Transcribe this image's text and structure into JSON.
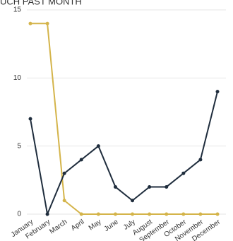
{
  "chart_data": {
    "type": "line",
    "title": "UCH PAST MONTH",
    "categories": [
      "January",
      "February",
      "March",
      "April",
      "May",
      "June",
      "July",
      "August",
      "September",
      "October",
      "November",
      "December"
    ],
    "series": [
      {
        "color": "#d4b44a",
        "values": [
          14,
          14,
          1,
          0,
          0,
          0,
          0,
          0,
          0,
          0,
          0,
          0
        ]
      },
      {
        "color": "#1f2d3d",
        "values": [
          7,
          0,
          3,
          4,
          5,
          2,
          1,
          2,
          2,
          3,
          4,
          9
        ]
      }
    ],
    "ylim": [
      0,
      15
    ],
    "yticks": [
      0,
      5,
      10,
      15
    ],
    "grid": true
  }
}
